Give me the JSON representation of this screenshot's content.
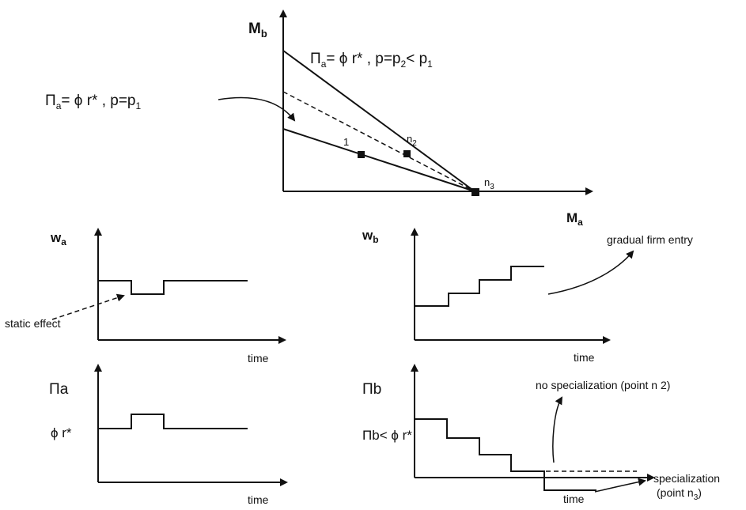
{
  "top": {
    "y_axis": "M",
    "y_axis_sub": "b",
    "x_axis": "M",
    "x_axis_sub": "a",
    "label_upper": {
      "pi": "Π",
      "sub_a": "a",
      "mid": "= ϕ r* , p=p",
      "sub2": "2",
      "lt": "< p",
      "sub1": "1"
    },
    "label_lower": {
      "pi": "Π",
      "sub_a": "a",
      "mid": "= ϕ r* , p=p",
      "sub1": "1"
    },
    "point_1": "1",
    "point_n2": "n",
    "point_n2_sub": "2",
    "point_n3": "n",
    "point_n3_sub": "3"
  },
  "wa_panel": {
    "y_label": "w",
    "y_label_sub": "a",
    "x_label": "time",
    "annotation": "static effect"
  },
  "wb_panel": {
    "y_label": "w",
    "y_label_sub": "b",
    "x_label": "time",
    "annotation": "gradual firm entry"
  },
  "pia_panel": {
    "y_label": "Πa",
    "level_label": "ϕ r*",
    "x_label": "time"
  },
  "pib_panel": {
    "y_label": "Πb",
    "level_label": "Πb< ϕ r*",
    "x_label": "time",
    "annotation_top": "no specialization (point n 2)",
    "annotation_right": "specialization",
    "annotation_right_2_prefix": "(point n",
    "annotation_right_2_sub": "3",
    "annotation_right_2_suffix": ")"
  }
}
